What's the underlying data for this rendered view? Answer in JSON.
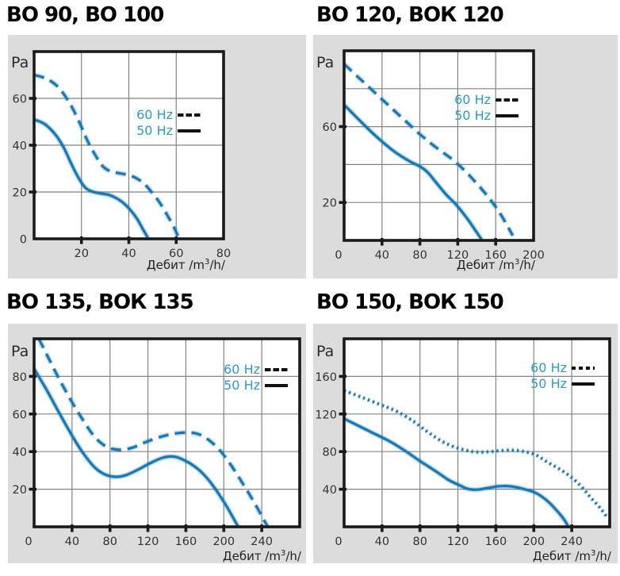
{
  "page": {
    "colors": {
      "background": "#ffffff",
      "panel_bg": "#dcdcdc",
      "plot_bg": "#ffffff",
      "border": "#1a1a1a",
      "grid": "#848484",
      "curve": "#1879b5",
      "curve_halo": "rgba(24,121,181,0.25)",
      "legend_text": "#2d9cc4",
      "tick_text": "#333333",
      "title_text": "#000000",
      "legend_sample": "#111111"
    }
  },
  "chart_data": [
    {
      "type": "line",
      "title": "ВО 90, ВО 100",
      "ylabel": "Pa",
      "xlabel": "Дебит /m3/h/",
      "xlabel_parts": {
        "pre": "Дебит /m",
        "sup": "3",
        "post": "/h/"
      },
      "xlim": [
        0,
        80
      ],
      "ylim": [
        0,
        80
      ],
      "x_ticks": [
        20,
        40,
        60,
        80
      ],
      "y_ticks": [
        0,
        20,
        40,
        60
      ],
      "grid_step_x": 20,
      "grid_step_y": 20,
      "grid": true,
      "legend_position": "inside-upper-right",
      "series": [
        {
          "name": "60 Hz",
          "style": "dashed",
          "points": [
            [
              0,
              70
            ],
            [
              5,
              68.5
            ],
            [
              10,
              65
            ],
            [
              15,
              58
            ],
            [
              19,
              50
            ],
            [
              22.5,
              42
            ],
            [
              26,
              35.5
            ],
            [
              29,
              31
            ],
            [
              32.5,
              28.7
            ],
            [
              36,
              28
            ],
            [
              39.5,
              27.3
            ],
            [
              43,
              26
            ],
            [
              46.5,
              23.5
            ],
            [
              50,
              19.5
            ],
            [
              53,
              15.5
            ],
            [
              56,
              10.5
            ],
            [
              59,
              5
            ],
            [
              61,
              0.5
            ]
          ]
        },
        {
          "name": "50 Hz",
          "style": "solid",
          "points": [
            [
              0,
              51
            ],
            [
              4.5,
              49
            ],
            [
              9,
              44.5
            ],
            [
              12.5,
              39
            ],
            [
              15.5,
              32.5
            ],
            [
              18.5,
              26.5
            ],
            [
              21.5,
              22
            ],
            [
              24.5,
              20.2
            ],
            [
              28,
              19.4
            ],
            [
              31.5,
              18.8
            ],
            [
              34.5,
              17.5
            ],
            [
              37.5,
              15.5
            ],
            [
              40.5,
              12.5
            ],
            [
              43.5,
              8.5
            ],
            [
              46,
              4
            ],
            [
              48,
              0.5
            ]
          ]
        }
      ]
    },
    {
      "type": "line",
      "title": "ВО 120, ВОК 120",
      "ylabel": "Pa",
      "xlabel": "Дебит /m3/h/",
      "xlabel_parts": {
        "pre": "Дебит /m",
        "sup": "3",
        "post": "/h/"
      },
      "xlim": [
        0,
        200
      ],
      "ylim": [
        0,
        100
      ],
      "x_ticks": [
        0,
        40,
        80,
        120,
        160,
        200
      ],
      "y_ticks": [
        20,
        60
      ],
      "grid_step_x": 40,
      "grid_step_y": 20,
      "grid": true,
      "legend_position": "inside-upper-right",
      "series": [
        {
          "name": "60 Hz",
          "style": "dashed",
          "points": [
            [
              0,
              93
            ],
            [
              14,
              86.5
            ],
            [
              28,
              80
            ],
            [
              42,
              73.5
            ],
            [
              55,
              67.5
            ],
            [
              68,
              61.5
            ],
            [
              80,
              56
            ],
            [
              92,
              51
            ],
            [
              104,
              46.5
            ],
            [
              116,
              42
            ],
            [
              128,
              36.5
            ],
            [
              140,
              30
            ],
            [
              152,
              23
            ],
            [
              163,
              15.5
            ],
            [
              172,
              8
            ],
            [
              178,
              2.5
            ]
          ]
        },
        {
          "name": "50 Hz",
          "style": "solid",
          "points": [
            [
              0,
              71.5
            ],
            [
              12,
              65.5
            ],
            [
              25,
              59
            ],
            [
              38,
              53
            ],
            [
              50,
              48
            ],
            [
              60,
              44.5
            ],
            [
              70,
              41.5
            ],
            [
              80,
              39
            ],
            [
              88,
              36
            ],
            [
              98,
              30
            ],
            [
              108,
              24
            ],
            [
              118,
              19
            ],
            [
              130,
              11.5
            ],
            [
              139,
              5
            ],
            [
              145,
              0.5
            ]
          ]
        }
      ]
    },
    {
      "type": "line",
      "title": "ВО 135, ВОК 135",
      "ylabel": "Pa",
      "xlabel": "Дебит /m3/h/",
      "xlabel_parts": {
        "pre": "Дебит /m",
        "sup": "3",
        "post": "/h/"
      },
      "xlim": [
        0,
        280
      ],
      "ylim": [
        0,
        100
      ],
      "x_ticks": [
        0,
        40,
        80,
        120,
        160,
        200,
        240
      ],
      "y_ticks": [
        20,
        40,
        60,
        80
      ],
      "grid_step_x": 40,
      "grid_step_y": 20,
      "grid": true,
      "legend_position": "inside-upper-right",
      "series": [
        {
          "name": "60 Hz",
          "style": "dashed",
          "points": [
            [
              5,
              100
            ],
            [
              13,
              92
            ],
            [
              25,
              80
            ],
            [
              38,
              68
            ],
            [
              50,
              58
            ],
            [
              62,
              49
            ],
            [
              72,
              44
            ],
            [
              82,
              41.5
            ],
            [
              92,
              41
            ],
            [
              103,
              42
            ],
            [
              115,
              44.5
            ],
            [
              128,
              47
            ],
            [
              142,
              49
            ],
            [
              155,
              50
            ],
            [
              167,
              50
            ],
            [
              177,
              48.5
            ],
            [
              187,
              45
            ],
            [
              197,
              40
            ],
            [
              208,
              32.5
            ],
            [
              220,
              23
            ],
            [
              232,
              13
            ],
            [
              243,
              3
            ],
            [
              246,
              0.5
            ]
          ]
        },
        {
          "name": "50 Hz",
          "style": "solid",
          "points": [
            [
              0,
              84
            ],
            [
              13,
              73
            ],
            [
              26,
              61
            ],
            [
              40,
              48.5
            ],
            [
              52,
              39
            ],
            [
              64,
              31.5
            ],
            [
              75,
              27.8
            ],
            [
              86,
              26.6
            ],
            [
              97,
              27.5
            ],
            [
              110,
              30.5
            ],
            [
              123,
              34
            ],
            [
              136,
              36.8
            ],
            [
              148,
              37.3
            ],
            [
              160,
              35
            ],
            [
              172,
              31
            ],
            [
              183,
              25.5
            ],
            [
              194,
              18
            ],
            [
              204,
              10
            ],
            [
              213,
              2
            ],
            [
              215,
              0.5
            ]
          ]
        }
      ]
    },
    {
      "type": "line",
      "title": "ВО 150, ВОК 150",
      "ylabel": "Pa",
      "xlabel": "Дебит /m3/h/",
      "xlabel_parts": {
        "pre": "Дебит /m",
        "sup": "3",
        "post": "/h/"
      },
      "xlim": [
        0,
        280
      ],
      "ylim": [
        0,
        200
      ],
      "x_ticks": [
        0,
        40,
        80,
        120,
        160,
        200,
        240
      ],
      "y_ticks": [
        40,
        80,
        120,
        160
      ],
      "grid_step_x": 40,
      "grid_step_y": 40,
      "grid": true,
      "legend_position": "inside-upper-right",
      "series": [
        {
          "name": "60 Hz",
          "style": "dotted",
          "points": [
            [
              0,
              145
            ],
            [
              18,
              138
            ],
            [
              38,
              130
            ],
            [
              55,
              123
            ],
            [
              72,
              113
            ],
            [
              88,
              101
            ],
            [
              103,
              91
            ],
            [
              116,
              85
            ],
            [
              128,
              81.5
            ],
            [
              140,
              79.5
            ],
            [
              153,
              79.8
            ],
            [
              165,
              81
            ],
            [
              178,
              81.5
            ],
            [
              190,
              80
            ],
            [
              202,
              76.5
            ],
            [
              214,
              69
            ],
            [
              226,
              62
            ],
            [
              238,
              54
            ],
            [
              250,
              43
            ],
            [
              260,
              31
            ],
            [
              270,
              20
            ],
            [
              278,
              9
            ]
          ]
        },
        {
          "name": "50 Hz",
          "style": "solid",
          "points": [
            [
              0,
              115
            ],
            [
              14,
              108
            ],
            [
              30,
              100
            ],
            [
              48,
              91
            ],
            [
              64,
              81
            ],
            [
              80,
              70
            ],
            [
              96,
              59.5
            ],
            [
              110,
              50
            ],
            [
              120,
              45
            ],
            [
              130,
              40.5
            ],
            [
              140,
              39.5
            ],
            [
              150,
              41
            ],
            [
              162,
              43
            ],
            [
              172,
              43.3
            ],
            [
              182,
              42
            ],
            [
              192,
              39.5
            ],
            [
              200,
              37
            ],
            [
              208,
              32.5
            ],
            [
              216,
              26
            ],
            [
              224,
              17.5
            ],
            [
              231,
              9
            ],
            [
              236,
              1
            ]
          ]
        }
      ]
    }
  ]
}
